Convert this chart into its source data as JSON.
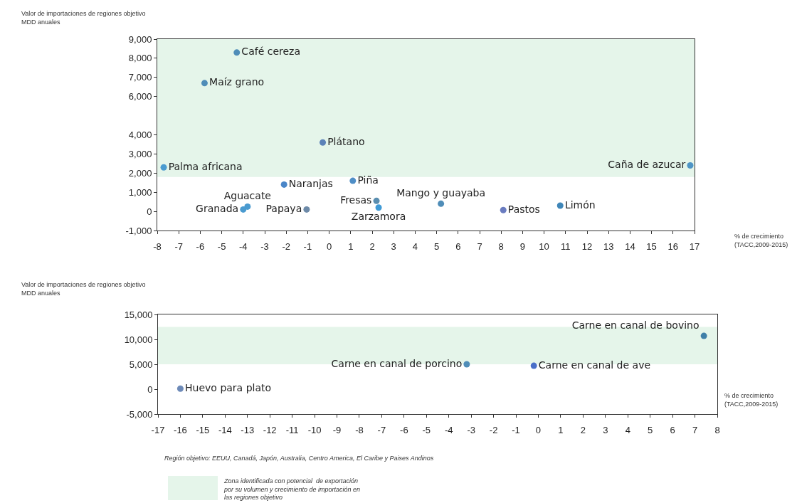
{
  "chart_data": [
    {
      "type": "scatter",
      "ylabel": "Valor de importaciones de regiones objetivo\nMDD anuales",
      "xlabel": "% de crecimiento\n(TACC,2009-2015)",
      "marker": "circle",
      "grid": false,
      "xlim": [
        -8,
        17
      ],
      "xticks": [
        -8,
        -7,
        -6,
        -5,
        -4,
        -3,
        -2,
        -1,
        0,
        1,
        2,
        3,
        4,
        5,
        6,
        7,
        8,
        9,
        10,
        11,
        12,
        13,
        14,
        15,
        16,
        17
      ],
      "ylim": [
        -1000,
        9000
      ],
      "yticks": [
        {
          "value": -1000,
          "label": "-1,000"
        },
        0,
        {
          "value": 1000,
          "label": "1,000"
        },
        {
          "value": 2000,
          "label": "2,000"
        },
        {
          "value": 3000,
          "label": "3,000"
        },
        {
          "value": 4000,
          "label": "4,000"
        },
        {
          "value": 6000,
          "label": "6,000"
        },
        {
          "value": 7000,
          "label": "7,000"
        },
        {
          "value": 8000,
          "label": "8,000"
        },
        {
          "value": 9000,
          "label": "9,000"
        }
      ],
      "bands": [
        {
          "axis": "y",
          "from": 1800,
          "to": 9000,
          "color": "#e5f5ea"
        }
      ],
      "series": [
        {
          "name": "Café cereza",
          "color": "#4f8db8",
          "x": [
            -4.3
          ],
          "values": [
            8300
          ]
        },
        {
          "name": "Maíz grano",
          "color": "#4f8db8",
          "x": [
            -5.8
          ],
          "values": [
            6700
          ]
        },
        {
          "name": "Plátano",
          "color": "#5b82b8",
          "x": [
            -0.3
          ],
          "values": [
            3600
          ]
        },
        {
          "name": "Palma africana",
          "color": "#4a9bd0",
          "x": [
            -7.7
          ],
          "values": [
            2300
          ]
        },
        {
          "name": "Naranjas",
          "color": "#4a86c8",
          "x": [
            -2.1
          ],
          "values": [
            1400
          ]
        },
        {
          "name": "Piña",
          "color": "#4f8ec6",
          "x": [
            1.1
          ],
          "values": [
            1600
          ]
        },
        {
          "name": "Aguacate",
          "color": "#4a9bd0",
          "x": [
            -3.8
          ],
          "values": [
            250
          ]
        },
        {
          "name": "Granada",
          "color": "#4a9bd0",
          "x": [
            -4.0
          ],
          "values": [
            100
          ]
        },
        {
          "name": "Papaya",
          "color": "#6d8aa8",
          "x": [
            -1.05
          ],
          "values": [
            100
          ]
        },
        {
          "name": "Fresas",
          "color": "#5a8eb0",
          "x": [
            2.2
          ],
          "values": [
            550
          ]
        },
        {
          "name": "Zarzamora",
          "color": "#3f9ad6",
          "x": [
            2.3
          ],
          "values": [
            200
          ]
        },
        {
          "name": "Mango y guayaba",
          "color": "#4f8db8",
          "x": [
            5.2
          ],
          "values": [
            400
          ]
        },
        {
          "name": "Pastos",
          "color": "#6a7cc0",
          "x": [
            8.1
          ],
          "values": [
            70
          ]
        },
        {
          "name": "Limón",
          "color": "#3f86b8",
          "x": [
            10.75
          ],
          "values": [
            300
          ]
        },
        {
          "name": "Caña de azucar",
          "color": "#4f95c6",
          "x": [
            16.8
          ],
          "values": [
            2400
          ]
        }
      ]
    },
    {
      "type": "scatter",
      "ylabel": "Valor de importaciones de regiones objetivo\nMDD anuales",
      "xlabel": "% de crecimiento\n(TACC,2009-2015)",
      "marker": "circle",
      "grid": false,
      "xlim": [
        -17,
        8
      ],
      "xticks": [
        -17,
        -16,
        -15,
        -14,
        -13,
        -12,
        -11,
        -10,
        -9,
        -8,
        -7,
        -6,
        -5,
        -4,
        -3,
        -2,
        -1,
        0,
        1,
        2,
        3,
        4,
        5,
        6,
        7,
        8
      ],
      "ylim": [
        -5000,
        15000
      ],
      "yticks": [
        {
          "value": -5000,
          "label": "-5,000"
        },
        0,
        {
          "value": 5000,
          "label": "5,000"
        },
        {
          "value": 10000,
          "label": "10,000"
        },
        {
          "value": 15000,
          "label": "15,000"
        }
      ],
      "bands": [
        {
          "axis": "y",
          "from": 5000,
          "to": 12500,
          "color": "#e5f5ea"
        }
      ],
      "annotations": [
        "Región objetivo: EEUU, Canadá, Japón, Australia, Centro America, El Caribe y Paises Andinos",
        "Zona identificada con potencial  de exportación\npor su volumen y crecimiento de importación en\nlas regiones objetivo"
      ],
      "series": [
        {
          "name": "Huevo para plato",
          "color": "#6d8ab8",
          "x": [
            -16
          ],
          "values": [
            100
          ]
        },
        {
          "name": "Carne en canal de porcino",
          "color": "#4f8db8",
          "x": [
            -3.2
          ],
          "values": [
            5000
          ]
        },
        {
          "name": "Carne en canal de ave",
          "color": "#4a6fc8",
          "x": [
            -0.2
          ],
          "values": [
            4700
          ]
        },
        {
          "name": "Carne en canal de bovino",
          "color": "#3f7fa8",
          "x": [
            7.4
          ],
          "values": [
            10700
          ]
        }
      ]
    }
  ]
}
